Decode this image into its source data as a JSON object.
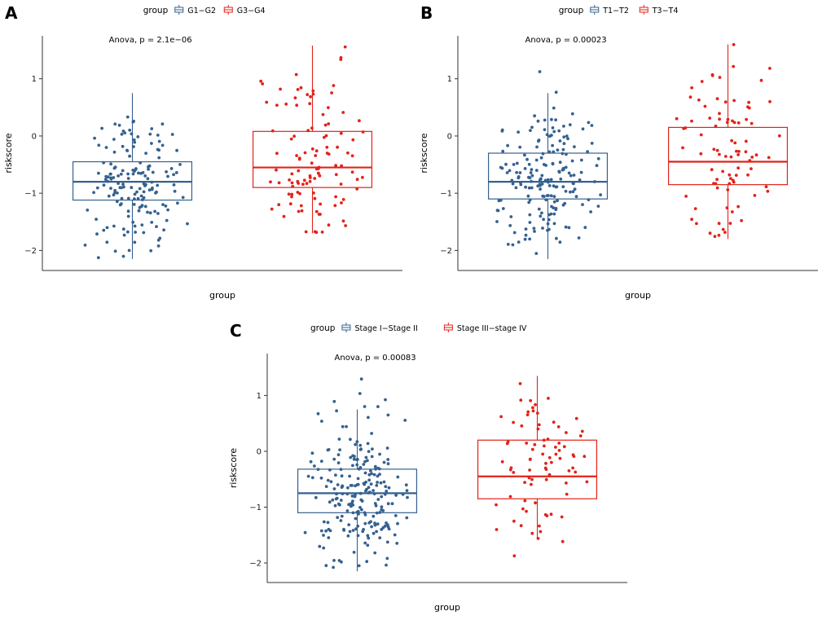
{
  "figure": {
    "background": "#ffffff",
    "axis_color": "#333333"
  },
  "chart_data": [
    {
      "id": "A",
      "type": "boxplot-jitter",
      "panel_label": "A",
      "legend_title": "group",
      "anova_text": "Anova, p = 2.1e−06",
      "xlabel": "group",
      "ylabel": "riskscore",
      "ylim": [
        -2.35,
        1.75
      ],
      "yticks": [
        -2,
        -1,
        0,
        1
      ],
      "seed_base": 11,
      "groups": [
        {
          "label": "G1−G2",
          "color": "#35618F",
          "n_points": 165,
          "box": {
            "median": -0.8,
            "q1": -1.12,
            "q3": -0.45,
            "whisker_low": -2.15,
            "whisker_high": 0.75
          },
          "points_range": [
            -2.15,
            1.28
          ]
        },
        {
          "label": "G3−G4",
          "color": "#E1231A",
          "n_points": 112,
          "box": {
            "median": -0.55,
            "q1": -0.9,
            "q3": 0.08,
            "whisker_low": -1.7,
            "whisker_high": 1.58
          },
          "points_range": [
            -1.72,
            1.62
          ]
        }
      ]
    },
    {
      "id": "B",
      "type": "boxplot-jitter",
      "panel_label": "B",
      "legend_title": "group",
      "anova_text": "Anova, p = 0.00023",
      "xlabel": "group",
      "ylabel": "riskscore",
      "ylim": [
        -2.35,
        1.75
      ],
      "yticks": [
        -2,
        -1,
        0,
        1
      ],
      "seed_base": 22,
      "groups": [
        {
          "label": "T1−T2",
          "color": "#35618F",
          "n_points": 190,
          "box": {
            "median": -0.8,
            "q1": -1.1,
            "q3": -0.3,
            "whisker_low": -2.15,
            "whisker_high": 0.75
          },
          "points_range": [
            -2.15,
            1.55
          ]
        },
        {
          "label": "T3−T4",
          "color": "#E1231A",
          "n_points": 88,
          "box": {
            "median": -0.45,
            "q1": -0.85,
            "q3": 0.15,
            "whisker_low": -1.8,
            "whisker_high": 1.6
          },
          "points_range": [
            -1.8,
            1.62
          ]
        }
      ]
    },
    {
      "id": "C",
      "type": "boxplot-jitter",
      "panel_label": "C",
      "legend_title": "group",
      "anova_text": "Anova, p = 0.00083",
      "xlabel": "group",
      "ylabel": "riskscore",
      "ylim": [
        -2.35,
        1.75
      ],
      "yticks": [
        -2,
        -1,
        0,
        1
      ],
      "seed_base": 33,
      "groups": [
        {
          "label": "Stage I−Stage II",
          "color": "#35618F",
          "n_points": 225,
          "box": {
            "median": -0.75,
            "q1": -1.1,
            "q3": -0.32,
            "whisker_low": -2.15,
            "whisker_high": 0.75
          },
          "points_range": [
            -2.15,
            1.3
          ]
        },
        {
          "label": "Stage III−stage IV",
          "color": "#E1231A",
          "n_points": 82,
          "box": {
            "median": -0.45,
            "q1": -0.85,
            "q3": 0.2,
            "whisker_low": -1.55,
            "whisker_high": 1.35
          },
          "points_range": [
            -1.9,
            1.62
          ]
        }
      ]
    }
  ]
}
